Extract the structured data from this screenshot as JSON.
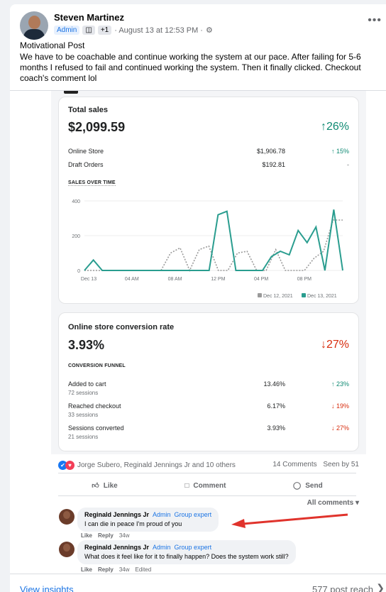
{
  "post": {
    "author": "Steven Martinez",
    "role_badge": "Admin",
    "extra_badge": "+1",
    "timestamp": "· August 13 at 12:53 PM ·",
    "title": "Motivational Post",
    "body": "We have to be coachable and continue working the system at our pace. After failing for 5-6 months I refused to fail and continued working the system. Then it finally clicked. Checkout coach's comment lol"
  },
  "screenshot": {
    "sales": {
      "title": "Total sales",
      "amount": "$2,099.59",
      "change": "↑26%",
      "rows": [
        {
          "label": "Online Store",
          "value": "$1,906.78",
          "change": "↑ 15%"
        },
        {
          "label": "Draft Orders",
          "value": "$192.81",
          "change": "-"
        }
      ],
      "chart_title": "SALES OVER TIME"
    },
    "conversion": {
      "title": "Online store conversion rate",
      "rate": "3.93%",
      "change": "↓27%",
      "funnel_title": "CONVERSION FUNNEL",
      "rows": [
        {
          "label": "Added to cart",
          "sub": "72 sessions",
          "value": "13.46%",
          "change": "↑ 23%"
        },
        {
          "label": "Reached checkout",
          "sub": "33 sessions",
          "value": "6.17%",
          "change": "↓ 19%"
        },
        {
          "label": "Sessions converted",
          "sub": "21 sessions",
          "value": "3.93%",
          "change": "↓ 27%"
        }
      ]
    }
  },
  "chart_data": {
    "type": "line",
    "y_ticks": [
      "400",
      "200",
      "0"
    ],
    "ylim": [
      0,
      400
    ],
    "x_ticks": [
      "Dec 13",
      "04 AM",
      "08 AM",
      "12 PM",
      "04 PM",
      "08 PM"
    ],
    "series": [
      {
        "name": "Dec 12, 2021",
        "color": "#9a9a9a",
        "style": "dotted",
        "values": [
          0,
          0,
          0,
          0,
          0,
          0,
          0,
          0,
          0,
          100,
          130,
          0,
          120,
          140,
          0,
          0,
          100,
          110,
          0,
          0,
          120,
          0,
          0,
          0,
          70,
          110,
          290,
          290
        ]
      },
      {
        "name": "Dec 13, 2021",
        "color": "#2a9d8f",
        "style": "solid",
        "values": [
          0,
          60,
          0,
          0,
          0,
          0,
          0,
          0,
          0,
          0,
          0,
          0,
          0,
          0,
          0,
          320,
          340,
          0,
          0,
          0,
          0,
          80,
          110,
          90,
          230,
          160,
          250,
          0,
          350,
          0
        ]
      }
    ]
  },
  "reactions": {
    "names": "Jorge Subero, Reginald Jennings Jr and 10 others",
    "comments_count": "14 Comments",
    "seen_by": "Seen by 51"
  },
  "actions": {
    "like": "Like",
    "comment": "Comment",
    "send": "Send"
  },
  "all_comments": "All comments",
  "comments": [
    {
      "name": "Reginald Jennings Jr",
      "tag1": "Admin",
      "tag2": "Group expert",
      "text": "I can die in peace I'm proud of you",
      "like": "Like",
      "reply": "Reply",
      "age": "34w"
    },
    {
      "name": "Reginald Jennings Jr",
      "tag1": "Admin",
      "tag2": "Group expert",
      "text": "What does it feel like for it to finally happen? Does the system work still?",
      "like": "Like",
      "reply": "Reply",
      "age": "34w",
      "edited": "Edited"
    }
  ],
  "footer": {
    "insights": "View insights",
    "reach": "577 post reach"
  },
  "colors": {
    "accent": "#1b74e4",
    "teal": "#2a9d8f",
    "red_arrow": "#e0332c"
  }
}
